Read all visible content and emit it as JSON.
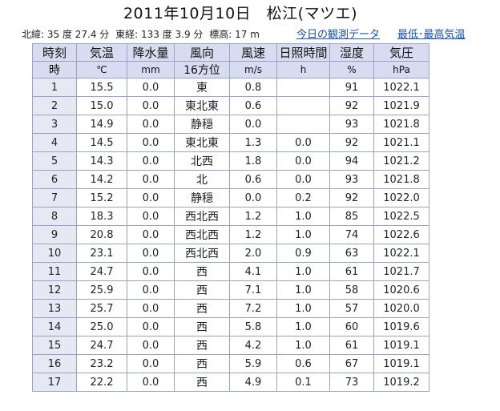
{
  "title": "2011年10月10日　松江(マツエ)",
  "meta": {
    "lat": "北緯: 35 度 27.4 分",
    "lon": "東経: 133 度 3.9 分",
    "elev": "標高: 17 m"
  },
  "links": {
    "today": "今日の観測データ",
    "maxmin": "最低･最高気温"
  },
  "headers": {
    "row1": [
      "時刻",
      "気温",
      "降水量",
      "風向",
      "風速",
      "日照時間",
      "湿度",
      "気圧"
    ],
    "row2": [
      "時",
      "℃",
      "mm",
      "16方位",
      "m/s",
      "h",
      "%",
      "hPa"
    ]
  },
  "rows": [
    {
      "hour": "1",
      "temp": "15.5",
      "precip": "0.0",
      "wind_dir": "東",
      "wind_speed": "0.8",
      "sunshine": "",
      "humidity": "91",
      "pressure": "1022.1"
    },
    {
      "hour": "2",
      "temp": "15.0",
      "precip": "0.0",
      "wind_dir": "東北東",
      "wind_speed": "0.6",
      "sunshine": "",
      "humidity": "92",
      "pressure": "1021.9"
    },
    {
      "hour": "3",
      "temp": "14.9",
      "precip": "0.0",
      "wind_dir": "静穏",
      "wind_speed": "0.0",
      "sunshine": "",
      "humidity": "93",
      "pressure": "1021.8"
    },
    {
      "hour": "4",
      "temp": "14.5",
      "precip": "0.0",
      "wind_dir": "東北東",
      "wind_speed": "1.3",
      "sunshine": "0.0",
      "humidity": "92",
      "pressure": "1021.1"
    },
    {
      "hour": "5",
      "temp": "14.3",
      "precip": "0.0",
      "wind_dir": "北西",
      "wind_speed": "1.8",
      "sunshine": "0.0",
      "humidity": "94",
      "pressure": "1021.2"
    },
    {
      "hour": "6",
      "temp": "14.2",
      "precip": "0.0",
      "wind_dir": "北",
      "wind_speed": "0.6",
      "sunshine": "0.0",
      "humidity": "93",
      "pressure": "1021.8"
    },
    {
      "hour": "7",
      "temp": "15.2",
      "precip": "0.0",
      "wind_dir": "静穏",
      "wind_speed": "0.0",
      "sunshine": "0.2",
      "humidity": "92",
      "pressure": "1022.0"
    },
    {
      "hour": "8",
      "temp": "18.3",
      "precip": "0.0",
      "wind_dir": "西北西",
      "wind_speed": "1.2",
      "sunshine": "1.0",
      "humidity": "85",
      "pressure": "1022.5"
    },
    {
      "hour": "9",
      "temp": "20.8",
      "precip": "0.0",
      "wind_dir": "西北西",
      "wind_speed": "1.2",
      "sunshine": "1.0",
      "humidity": "74",
      "pressure": "1022.6"
    },
    {
      "hour": "10",
      "temp": "23.1",
      "precip": "0.0",
      "wind_dir": "西北西",
      "wind_speed": "2.0",
      "sunshine": "0.9",
      "humidity": "63",
      "pressure": "1022.1"
    },
    {
      "hour": "11",
      "temp": "24.7",
      "precip": "0.0",
      "wind_dir": "西",
      "wind_speed": "4.1",
      "sunshine": "1.0",
      "humidity": "61",
      "pressure": "1021.7"
    },
    {
      "hour": "12",
      "temp": "25.9",
      "precip": "0.0",
      "wind_dir": "西",
      "wind_speed": "7.1",
      "sunshine": "1.0",
      "humidity": "58",
      "pressure": "1020.6"
    },
    {
      "hour": "13",
      "temp": "25.7",
      "precip": "0.0",
      "wind_dir": "西",
      "wind_speed": "7.2",
      "sunshine": "1.0",
      "humidity": "57",
      "pressure": "1020.0"
    },
    {
      "hour": "14",
      "temp": "25.0",
      "precip": "0.0",
      "wind_dir": "西",
      "wind_speed": "5.8",
      "sunshine": "1.0",
      "humidity": "60",
      "pressure": "1019.6"
    },
    {
      "hour": "15",
      "temp": "24.7",
      "precip": "0.0",
      "wind_dir": "西",
      "wind_speed": "4.2",
      "sunshine": "1.0",
      "humidity": "61",
      "pressure": "1019.1"
    },
    {
      "hour": "16",
      "temp": "23.2",
      "precip": "0.0",
      "wind_dir": "西",
      "wind_speed": "5.9",
      "sunshine": "0.6",
      "humidity": "67",
      "pressure": "1019.1"
    },
    {
      "hour": "17",
      "temp": "22.2",
      "precip": "0.0",
      "wind_dir": "西",
      "wind_speed": "4.9",
      "sunshine": "0.1",
      "humidity": "73",
      "pressure": "1019.2"
    }
  ]
}
